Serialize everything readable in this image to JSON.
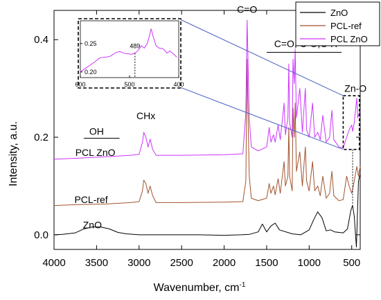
{
  "chart_data": {
    "type": "line",
    "xlabel": "Wavenumber, cm",
    "xlabel_superscript": "-1",
    "ylabel": "Intensity, a.u.",
    "xlim": [
      4000,
      400
    ],
    "ylim": [
      -0.03,
      0.46
    ],
    "x_ticks": [
      4000,
      3500,
      3000,
      2500,
      2000,
      1500,
      1000,
      500
    ],
    "y_ticks": [
      0.0,
      0.2,
      0.4
    ],
    "y_tick_labels": [
      "0.0",
      "0.2",
      "0.4"
    ],
    "grid": false,
    "legend_position": "top-right",
    "series": [
      {
        "name": "ZnO",
        "label": "ZnO",
        "color": "#000000",
        "points": [
          [
            4000,
            0.0
          ],
          [
            3900,
            0.001
          ],
          [
            3750,
            0.004
          ],
          [
            3650,
            0.012
          ],
          [
            3550,
            0.016
          ],
          [
            3450,
            0.016
          ],
          [
            3350,
            0.012
          ],
          [
            3250,
            0.005
          ],
          [
            3150,
            0.002
          ],
          [
            3000,
            0.0
          ],
          [
            2500,
            0.0
          ],
          [
            2300,
            0.0
          ],
          [
            2000,
            -0.001
          ],
          [
            1800,
            0.0
          ],
          [
            1700,
            0.001
          ],
          [
            1600,
            0.006
          ],
          [
            1550,
            0.022
          ],
          [
            1500,
            0.006
          ],
          [
            1450,
            0.018
          ],
          [
            1400,
            0.024
          ],
          [
            1350,
            0.01
          ],
          [
            1200,
            0.002
          ],
          [
            1100,
            0.0
          ],
          [
            1000,
            0.01
          ],
          [
            950,
            0.03
          ],
          [
            900,
            0.047
          ],
          [
            850,
            0.035
          ],
          [
            800,
            0.008
          ],
          [
            750,
            0.01
          ],
          [
            700,
            0.006
          ],
          [
            600,
            0.004
          ],
          [
            550,
            0.012
          ],
          [
            510,
            0.05
          ],
          [
            490,
            0.06
          ],
          [
            470,
            0.038
          ],
          [
            455,
            0.0
          ],
          [
            445,
            -0.025
          ],
          [
            435,
            0.03
          ],
          [
            420,
            0.11
          ],
          [
            400,
            0.125
          ]
        ]
      },
      {
        "name": "PCL-ref",
        "label": "PCL-ref",
        "color": "#a0522d",
        "points": [
          [
            4000,
            0.06
          ],
          [
            3700,
            0.062
          ],
          [
            3400,
            0.063
          ],
          [
            3100,
            0.066
          ],
          [
            3000,
            0.068
          ],
          [
            2960,
            0.09
          ],
          [
            2945,
            0.112
          ],
          [
            2920,
            0.105
          ],
          [
            2895,
            0.085
          ],
          [
            2870,
            0.1
          ],
          [
            2840,
            0.08
          ],
          [
            2800,
            0.066
          ],
          [
            2500,
            0.066
          ],
          [
            2000,
            0.067
          ],
          [
            1780,
            0.068
          ],
          [
            1745,
            0.11
          ],
          [
            1730,
            0.36
          ],
          [
            1720,
            0.26
          ],
          [
            1705,
            0.12
          ],
          [
            1680,
            0.075
          ],
          [
            1600,
            0.07
          ],
          [
            1500,
            0.075
          ],
          [
            1470,
            0.105
          ],
          [
            1450,
            0.085
          ],
          [
            1420,
            0.1
          ],
          [
            1400,
            0.082
          ],
          [
            1365,
            0.115
          ],
          [
            1340,
            0.085
          ],
          [
            1295,
            0.15
          ],
          [
            1280,
            0.1
          ],
          [
            1250,
            0.12
          ],
          [
            1240,
            0.22
          ],
          [
            1230,
            0.12
          ],
          [
            1200,
            0.09
          ],
          [
            1190,
            0.26
          ],
          [
            1175,
            0.2
          ],
          [
            1165,
            0.27
          ],
          [
            1150,
            0.13
          ],
          [
            1110,
            0.17
          ],
          [
            1080,
            0.1
          ],
          [
            1045,
            0.18
          ],
          [
            1030,
            0.11
          ],
          [
            1000,
            0.09
          ],
          [
            960,
            0.15
          ],
          [
            935,
            0.09
          ],
          [
            900,
            0.1
          ],
          [
            870,
            0.08
          ],
          [
            840,
            0.12
          ],
          [
            800,
            0.075
          ],
          [
            760,
            0.085
          ],
          [
            733,
            0.13
          ],
          [
            710,
            0.08
          ],
          [
            650,
            0.07
          ],
          [
            600,
            0.072
          ],
          [
            560,
            0.12
          ],
          [
            530,
            0.1
          ],
          [
            500,
            0.085
          ],
          [
            470,
            0.11
          ],
          [
            440,
            0.14
          ],
          [
            420,
            0.12
          ],
          [
            400,
            0.14
          ]
        ]
      },
      {
        "name": "PCL ZnO",
        "label": "PCL ZnO",
        "color": "#cc33ff",
        "points": [
          [
            4000,
            0.155
          ],
          [
            3700,
            0.157
          ],
          [
            3400,
            0.16
          ],
          [
            3100,
            0.163
          ],
          [
            3000,
            0.165
          ],
          [
            2960,
            0.19
          ],
          [
            2945,
            0.21
          ],
          [
            2920,
            0.2
          ],
          [
            2895,
            0.18
          ],
          [
            2870,
            0.196
          ],
          [
            2840,
            0.175
          ],
          [
            2800,
            0.163
          ],
          [
            2500,
            0.163
          ],
          [
            2000,
            0.164
          ],
          [
            1780,
            0.166
          ],
          [
            1745,
            0.25
          ],
          [
            1730,
            0.44
          ],
          [
            1722,
            0.38
          ],
          [
            1705,
            0.24
          ],
          [
            1680,
            0.18
          ],
          [
            1600,
            0.172
          ],
          [
            1500,
            0.18
          ],
          [
            1470,
            0.22
          ],
          [
            1450,
            0.19
          ],
          [
            1420,
            0.205
          ],
          [
            1400,
            0.19
          ],
          [
            1365,
            0.225
          ],
          [
            1340,
            0.195
          ],
          [
            1295,
            0.27
          ],
          [
            1280,
            0.205
          ],
          [
            1250,
            0.24
          ],
          [
            1240,
            0.35
          ],
          [
            1230,
            0.23
          ],
          [
            1200,
            0.2
          ],
          [
            1190,
            0.36
          ],
          [
            1175,
            0.31
          ],
          [
            1165,
            0.38
          ],
          [
            1150,
            0.24
          ],
          [
            1110,
            0.3
          ],
          [
            1080,
            0.21
          ],
          [
            1045,
            0.3
          ],
          [
            1030,
            0.215
          ],
          [
            1000,
            0.2
          ],
          [
            960,
            0.27
          ],
          [
            935,
            0.2
          ],
          [
            900,
            0.21
          ],
          [
            870,
            0.195
          ],
          [
            840,
            0.245
          ],
          [
            800,
            0.19
          ],
          [
            760,
            0.2
          ],
          [
            733,
            0.255
          ],
          [
            710,
            0.195
          ],
          [
            650,
            0.18
          ],
          [
            600,
            0.178
          ],
          [
            560,
            0.2
          ],
          [
            530,
            0.215
          ],
          [
            500,
            0.225
          ],
          [
            489,
            0.212
          ],
          [
            470,
            0.23
          ],
          [
            450,
            0.265
          ],
          [
            440,
            0.28
          ],
          [
            430,
            0.24
          ],
          [
            400,
            0.255
          ]
        ]
      }
    ],
    "annotations": [
      {
        "text": "C=O",
        "x": 1730,
        "y": 0.455
      },
      {
        "text": "C=O, C-O,C-H",
        "x": 1040,
        "y": 0.385
      },
      {
        "text": "Zn-O",
        "x": 455,
        "y": 0.293
      },
      {
        "text": "CHx",
        "x": 2920,
        "y": 0.237
      },
      {
        "text": "OH",
        "x": 3500,
        "y": 0.205
      },
      {
        "text": "PCL ZnO",
        "x": 3750,
        "y": 0.162
      },
      {
        "text": "PCL-ref",
        "x": 3760,
        "y": 0.065
      },
      {
        "text": "ZnO",
        "x": 3660,
        "y": 0.013
      }
    ],
    "inset": {
      "xlim": [
        600,
        400
      ],
      "ylim": [
        0.19,
        0.29
      ],
      "x_ticks": [
        600,
        500,
        400
      ],
      "y_ticks": [
        0.2,
        0.25
      ],
      "y_tick_labels": [
        "0.20",
        "0.25"
      ],
      "marker_label": "489",
      "marker_x": 489,
      "color": "#cc33ff",
      "points": [
        [
          600,
          0.2
        ],
        [
          592,
          0.205
        ],
        [
          580,
          0.212
        ],
        [
          570,
          0.218
        ],
        [
          560,
          0.225
        ],
        [
          548,
          0.226
        ],
        [
          538,
          0.228
        ],
        [
          528,
          0.234
        ],
        [
          520,
          0.236
        ],
        [
          512,
          0.233
        ],
        [
          504,
          0.232
        ],
        [
          496,
          0.231
        ],
        [
          489,
          0.233
        ],
        [
          482,
          0.238
        ],
        [
          476,
          0.246
        ],
        [
          470,
          0.242
        ],
        [
          464,
          0.25
        ],
        [
          460,
          0.262
        ],
        [
          456,
          0.276
        ],
        [
          452,
          0.262
        ],
        [
          446,
          0.246
        ],
        [
          440,
          0.242
        ],
        [
          432,
          0.241
        ],
        [
          424,
          0.233
        ],
        [
          418,
          0.237
        ],
        [
          410,
          0.231
        ],
        [
          404,
          0.226
        ]
      ]
    }
  }
}
